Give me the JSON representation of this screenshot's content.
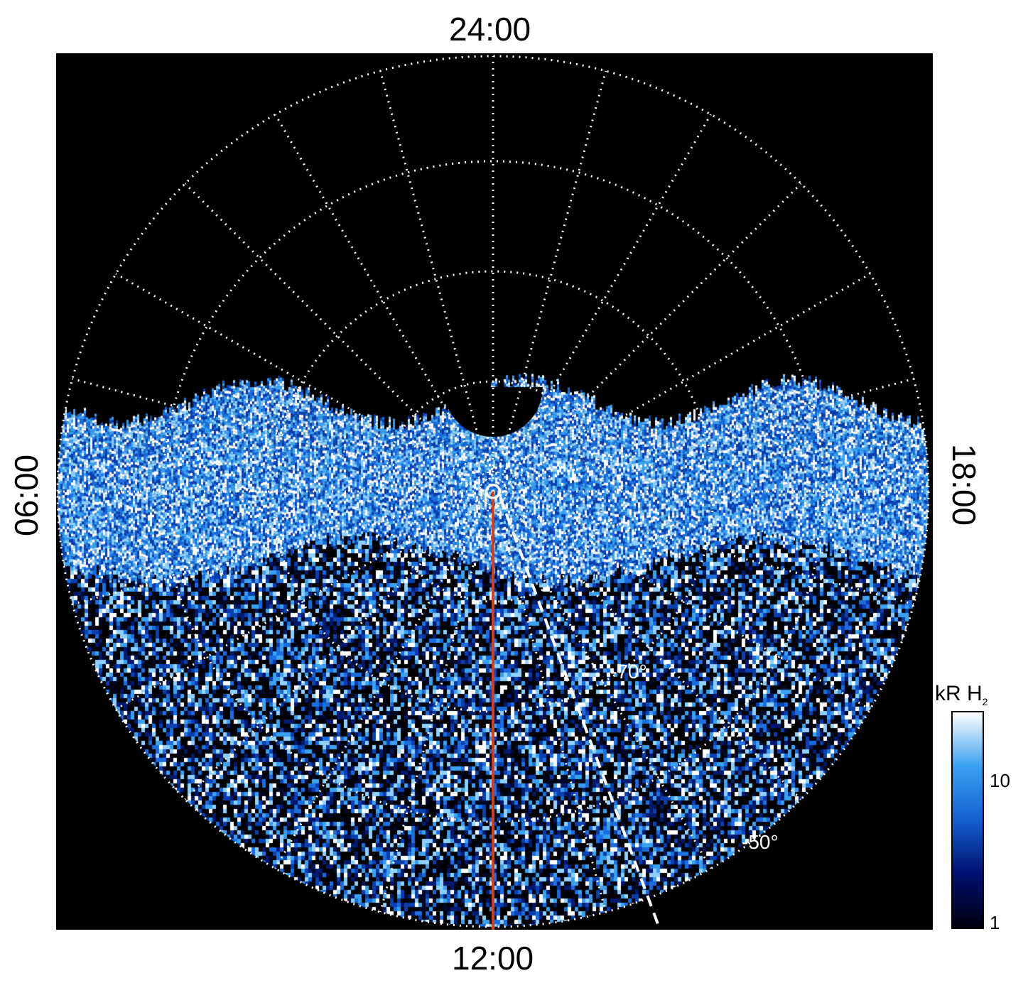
{
  "axis_labels": {
    "top": "24:00",
    "bottom": "12:00",
    "left": "06:00",
    "right": "18:00"
  },
  "latitude_labels": [
    "-70°",
    "-50°"
  ],
  "colorbar": {
    "title": "kR H",
    "title_subscript": "2",
    "ticks": [
      "10",
      "1"
    ],
    "scale": "log",
    "colors": [
      "#000010",
      "#001070",
      "#1560d0",
      "#3aa0f0",
      "#ffffff"
    ]
  },
  "colors": {
    "background": "#000000",
    "grid": "#ffffff",
    "meridian_marker": "#d04020"
  }
}
